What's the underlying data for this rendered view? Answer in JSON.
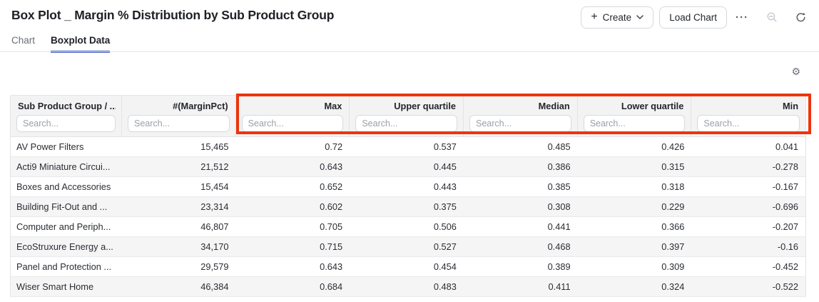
{
  "header": {
    "title": "Box Plot _ Margin % Distribution by Sub Product Group"
  },
  "toolbar": {
    "create_label": "Create",
    "load_chart_label": "Load Chart",
    "icons": [
      "more-ellipsis",
      "zoom-out",
      "refresh",
      "gear"
    ]
  },
  "tabs": [
    {
      "label": "Chart",
      "active": false
    },
    {
      "label": "Boxplot Data",
      "active": true
    }
  ],
  "colors": {
    "accent_blue": "#3e5bc0",
    "highlight_red": "#ed350c"
  },
  "table": {
    "search_placeholder": "Search...",
    "columns": [
      {
        "label": "Sub Product Group / ...",
        "align": "left"
      },
      {
        "label": "#(MarginPct)",
        "align": "right"
      },
      {
        "label": "Max",
        "align": "right"
      },
      {
        "label": "Upper quartile",
        "align": "right"
      },
      {
        "label": "Median",
        "align": "right"
      },
      {
        "label": "Lower quartile",
        "align": "right"
      },
      {
        "label": "Min",
        "align": "right"
      }
    ],
    "rows": [
      [
        "AV Power Filters",
        "15,465",
        "0.72",
        "0.537",
        "0.485",
        "0.426",
        "0.041"
      ],
      [
        "Acti9 Miniature Circui...",
        "21,512",
        "0.643",
        "0.445",
        "0.386",
        "0.315",
        "-0.278"
      ],
      [
        "Boxes and Accessories",
        "15,454",
        "0.652",
        "0.443",
        "0.385",
        "0.318",
        "-0.167"
      ],
      [
        "Building Fit-Out and ...",
        "23,314",
        "0.602",
        "0.375",
        "0.308",
        "0.229",
        "-0.696"
      ],
      [
        "Computer and Periph...",
        "46,807",
        "0.705",
        "0.506",
        "0.441",
        "0.366",
        "-0.207"
      ],
      [
        "EcoStruxure Energy a...",
        "34,170",
        "0.715",
        "0.527",
        "0.468",
        "0.397",
        "-0.16"
      ],
      [
        "Panel and Protection ...",
        "29,579",
        "0.643",
        "0.454",
        "0.389",
        "0.309",
        "-0.452"
      ],
      [
        "Wiser Smart Home",
        "46,384",
        "0.684",
        "0.483",
        "0.411",
        "0.324",
        "-0.522"
      ]
    ],
    "highlighted_columns": [
      "Max",
      "Upper quartile",
      "Median",
      "Lower quartile",
      "Min"
    ]
  }
}
